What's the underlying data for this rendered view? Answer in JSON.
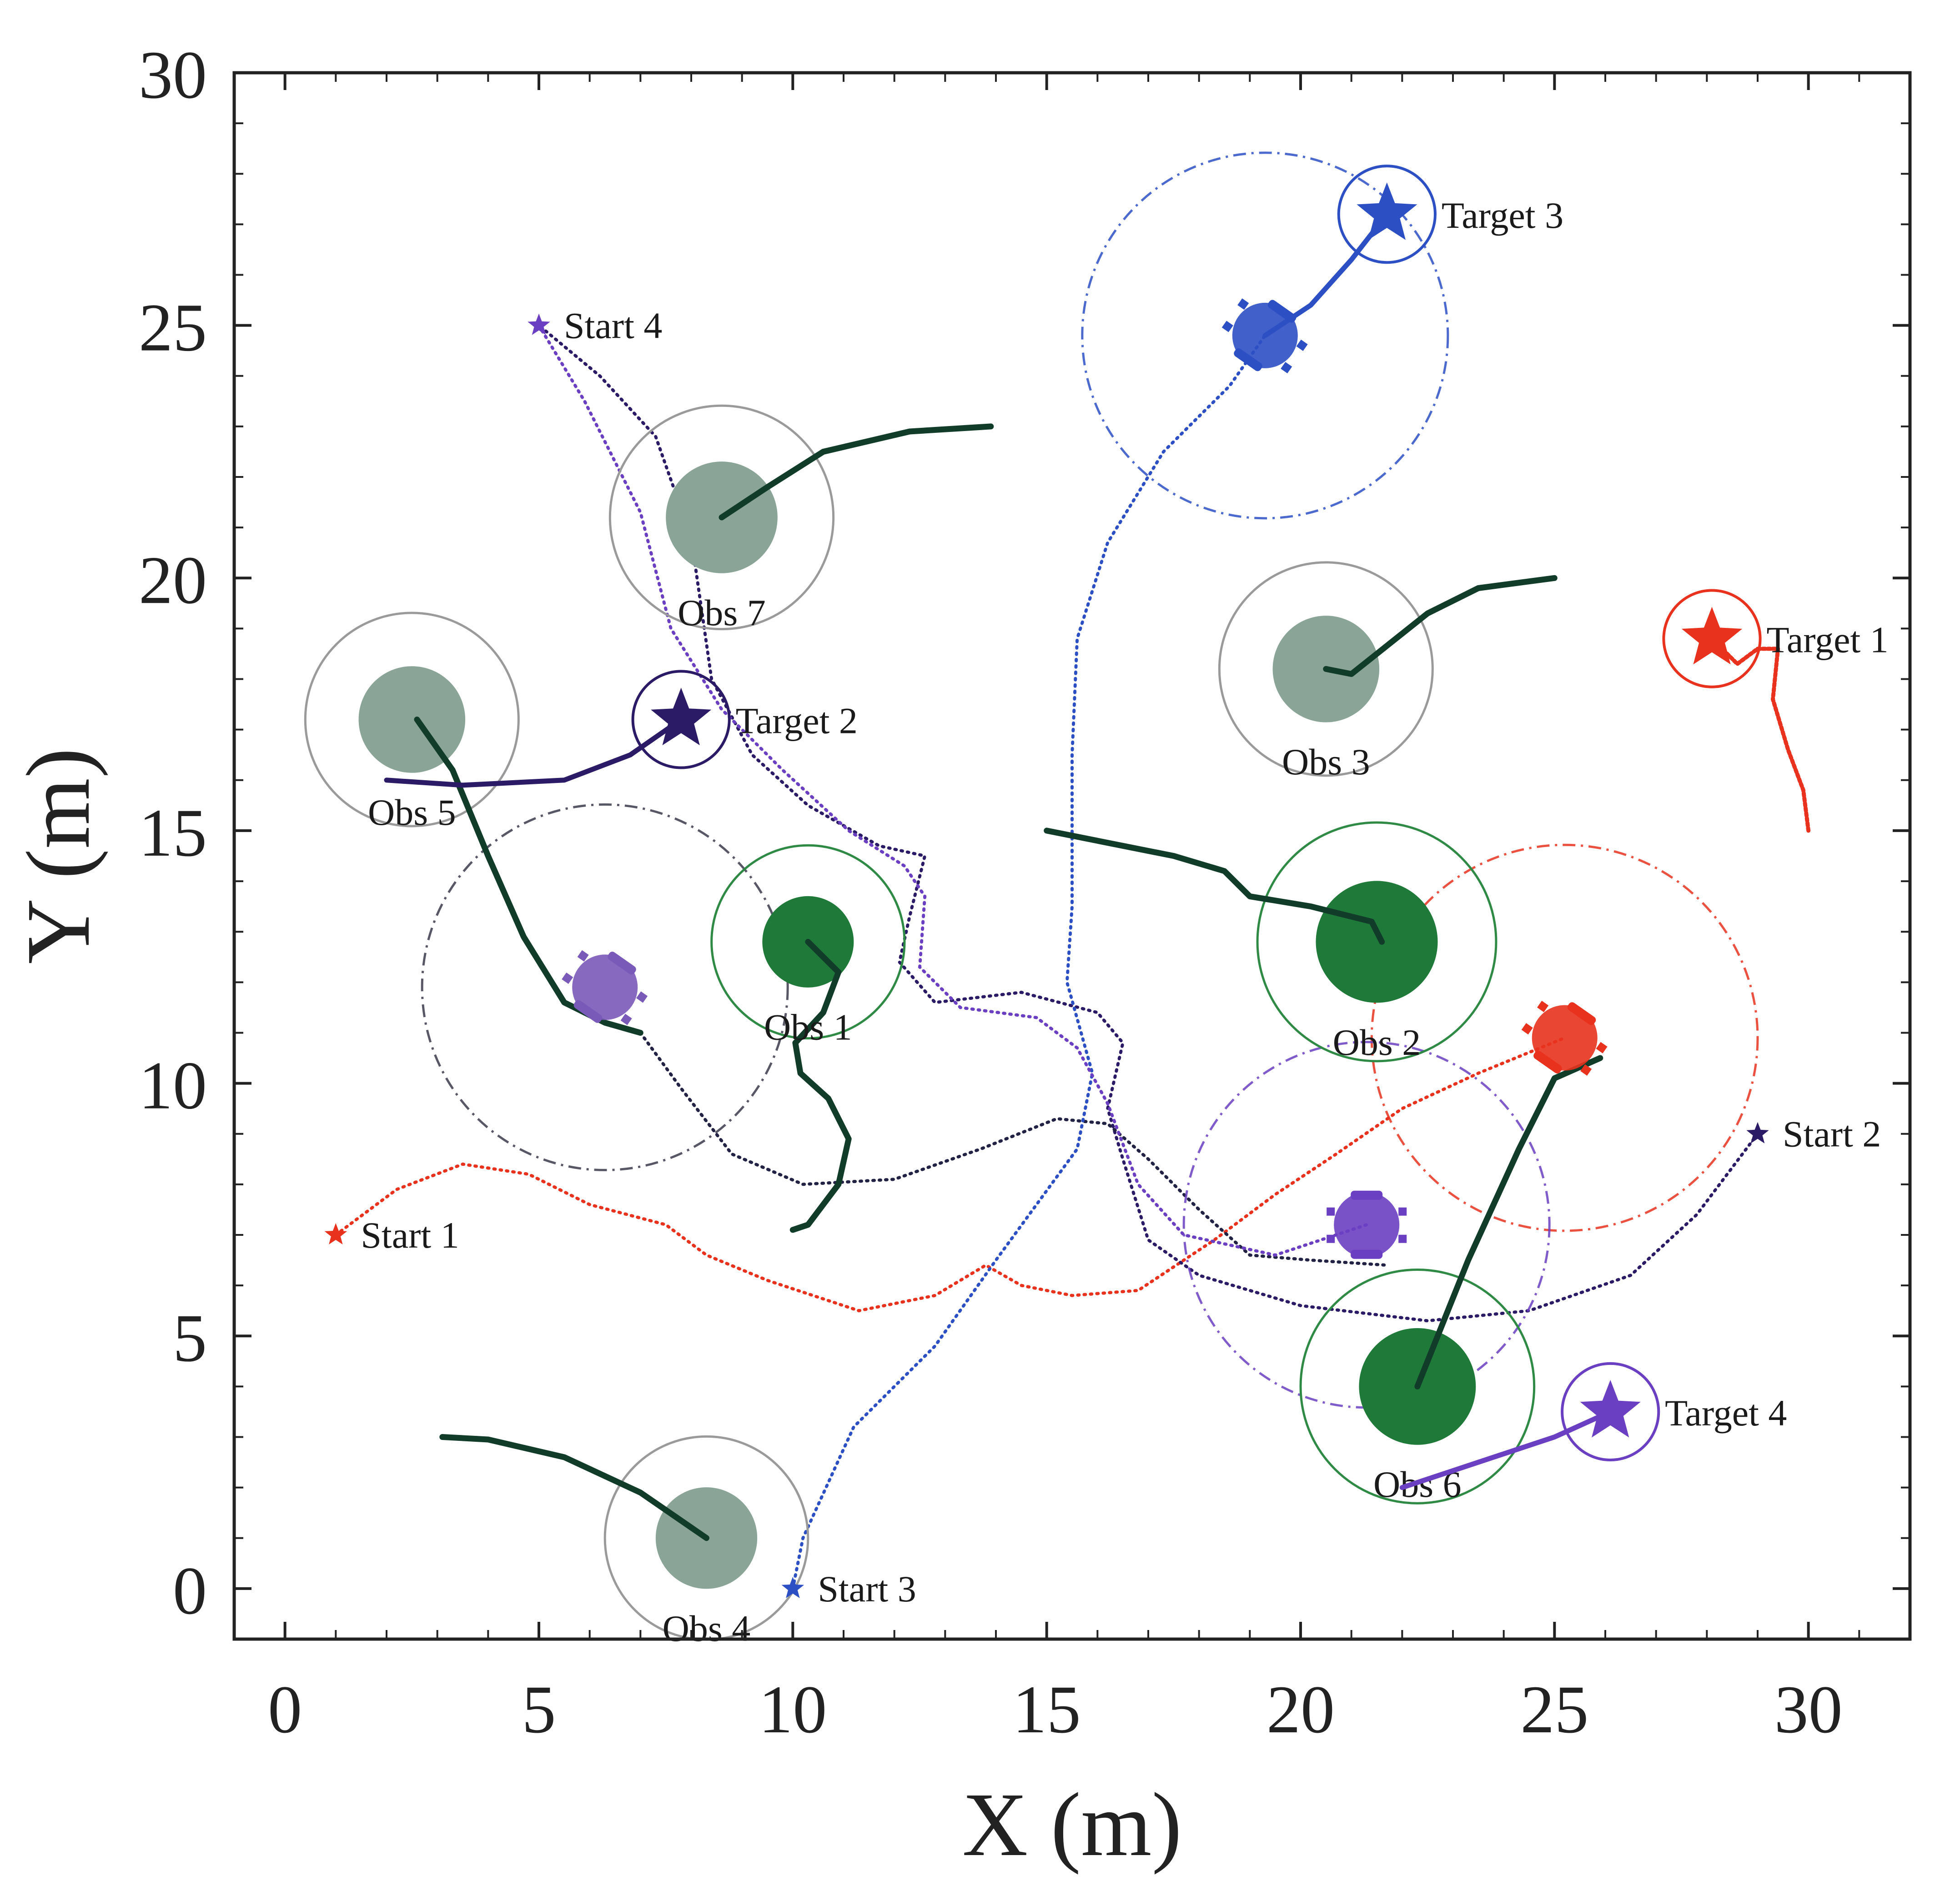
{
  "chart_data": {
    "type": "scatter",
    "title": "",
    "xlabel": "X (m)",
    "ylabel": "Y (m)",
    "xlim": [
      -1,
      32
    ],
    "ylim": [
      -1,
      30
    ],
    "xticks": [
      0,
      5,
      10,
      15,
      20,
      25,
      30
    ],
    "yticks": [
      0,
      5,
      10,
      15,
      20,
      25,
      30
    ],
    "grid": false,
    "legend": "none",
    "colors": {
      "obstacle_static": "#8aa597",
      "obstacle_dynamic": "#1f7a3a",
      "obstacle_ring_static": "#9a9a9a",
      "obstacle_ring_dynamic": "#2f8a45",
      "obstacle_path": "#123c2a",
      "robot1": "#e8321e",
      "robot2": "#2b1b66",
      "robot3": "#2d4fc4",
      "robot4": "#6a3fc2"
    },
    "obstacles": [
      {
        "label": "Obs 1",
        "x": 10.3,
        "y": 12.8,
        "r": 0.9,
        "ring": 1.9,
        "kind": "dynamic",
        "path": [
          [
            10.3,
            12.8
          ],
          [
            10.9,
            12.2
          ],
          [
            10.6,
            11.4
          ],
          [
            10.05,
            10.8
          ],
          [
            10.15,
            10.2
          ],
          [
            10.7,
            9.7
          ],
          [
            11.1,
            8.9
          ],
          [
            10.9,
            8.0
          ],
          [
            10.3,
            7.2
          ],
          [
            10.0,
            7.1
          ]
        ]
      },
      {
        "label": "Obs 2",
        "x": 21.5,
        "y": 12.8,
        "r": 1.2,
        "ring": 2.35,
        "kind": "dynamic",
        "path": [
          [
            21.6,
            12.8
          ],
          [
            21.4,
            13.2
          ],
          [
            20.2,
            13.5
          ],
          [
            19.0,
            13.7
          ],
          [
            18.5,
            14.2
          ],
          [
            17.5,
            14.5
          ],
          [
            15.0,
            15.0
          ]
        ]
      },
      {
        "label": "Obs 3",
        "x": 20.5,
        "y": 18.2,
        "r": 1.05,
        "ring": 2.1,
        "kind": "static",
        "path": [
          [
            20.5,
            18.2
          ],
          [
            21.0,
            18.1
          ],
          [
            22.5,
            19.3
          ],
          [
            23.5,
            19.8
          ],
          [
            25.0,
            20.0
          ]
        ]
      },
      {
        "label": "Obs 4",
        "x": 8.3,
        "y": 1.0,
        "r": 1.0,
        "ring": 2.0,
        "kind": "static",
        "path": [
          [
            8.3,
            1.0
          ],
          [
            7.0,
            1.9
          ],
          [
            5.5,
            2.6
          ],
          [
            4.0,
            2.95
          ],
          [
            3.1,
            3.0
          ]
        ]
      },
      {
        "label": "Obs 5",
        "x": 2.5,
        "y": 17.2,
        "r": 1.05,
        "ring": 2.1,
        "kind": "static",
        "path": [
          [
            2.6,
            17.2
          ],
          [
            3.3,
            16.2
          ],
          [
            4.0,
            14.5
          ],
          [
            4.7,
            12.9
          ],
          [
            5.5,
            11.6
          ],
          [
            6.3,
            11.2
          ],
          [
            7.0,
            11.0
          ]
        ]
      },
      {
        "label": "Obs 6",
        "x": 22.3,
        "y": 4.0,
        "r": 1.15,
        "ring": 2.3,
        "kind": "dynamic",
        "path": [
          [
            22.3,
            4.0
          ],
          [
            23.3,
            6.5
          ],
          [
            24.3,
            8.7
          ],
          [
            25.0,
            10.1
          ],
          [
            25.9,
            10.5
          ]
        ]
      },
      {
        "label": "Obs 7",
        "x": 8.6,
        "y": 21.2,
        "r": 1.1,
        "ring": 2.2,
        "kind": "static",
        "path": [
          [
            8.6,
            21.2
          ],
          [
            9.5,
            21.8
          ],
          [
            10.6,
            22.5
          ],
          [
            12.3,
            22.9
          ],
          [
            13.9,
            23.0
          ]
        ]
      }
    ],
    "robots": [
      {
        "start_label": "Start 1",
        "target_label": "Target 1",
        "color": "#e8321e",
        "start": [
          1.0,
          7.0
        ],
        "target": [
          28.1,
          18.8
        ],
        "current": [
          25.2,
          10.9
        ],
        "sense_r": 3.8,
        "path": [
          [
            1.0,
            7.0
          ],
          [
            2.2,
            7.9
          ],
          [
            3.5,
            8.4
          ],
          [
            4.8,
            8.2
          ],
          [
            6.0,
            7.6
          ],
          [
            7.5,
            7.2
          ],
          [
            8.3,
            6.6
          ],
          [
            9.5,
            6.1
          ],
          [
            11.3,
            5.5
          ],
          [
            12.8,
            5.8
          ],
          [
            13.8,
            6.4
          ],
          [
            14.5,
            6.0
          ],
          [
            15.5,
            5.8
          ],
          [
            16.8,
            5.9
          ],
          [
            18.3,
            6.9
          ],
          [
            19.5,
            7.8
          ],
          [
            20.7,
            8.6
          ],
          [
            22.0,
            9.5
          ],
          [
            23.5,
            10.2
          ],
          [
            25.2,
            10.9
          ]
        ],
        "aux_path": [
          [
            30.0,
            15.0
          ],
          [
            29.9,
            15.8
          ],
          [
            29.6,
            16.6
          ],
          [
            29.3,
            17.6
          ],
          [
            29.4,
            18.6
          ],
          [
            29.0,
            18.6
          ],
          [
            28.6,
            18.3
          ],
          [
            28.1,
            18.8
          ]
        ]
      },
      {
        "start_label": "Start 2",
        "target_label": "Target 2",
        "color": "#2b1b66",
        "start": [
          29.0,
          9.0
        ],
        "target": [
          7.8,
          17.2
        ],
        "current": [
          6.3,
          11.9
        ],
        "sense_r": 3.6,
        "path": [
          [
            29.0,
            9.0
          ],
          [
            27.8,
            7.4
          ],
          [
            26.5,
            6.2
          ],
          [
            24.5,
            5.5
          ],
          [
            22.5,
            5.3
          ],
          [
            20.0,
            5.6
          ],
          [
            18.0,
            6.2
          ],
          [
            17.0,
            6.9
          ],
          [
            16.5,
            8.5
          ],
          [
            16.2,
            9.5
          ],
          [
            16.5,
            10.8
          ],
          [
            16.0,
            11.4
          ],
          [
            14.5,
            11.8
          ],
          [
            12.8,
            11.6
          ],
          [
            12.1,
            12.4
          ],
          [
            12.3,
            13.3
          ],
          [
            12.6,
            14.5
          ],
          [
            11.7,
            14.7
          ],
          [
            10.3,
            15.5
          ],
          [
            9.2,
            16.5
          ],
          [
            8.4,
            18.0
          ],
          [
            8.0,
            20.8
          ],
          [
            7.3,
            22.8
          ],
          [
            6.2,
            24.0
          ],
          [
            5.0,
            25.0
          ]
        ],
        "aux_path": [
          [
            2.0,
            16.0
          ],
          [
            3.5,
            15.9
          ],
          [
            5.5,
            16.0
          ],
          [
            6.8,
            16.5
          ],
          [
            7.8,
            17.2
          ]
        ],
        "aux2_path": [
          [
            7.0,
            11.0
          ],
          [
            7.8,
            9.9
          ],
          [
            8.8,
            8.6
          ],
          [
            10.2,
            8.0
          ],
          [
            12.0,
            8.1
          ],
          [
            13.7,
            8.7
          ],
          [
            15.2,
            9.3
          ],
          [
            16.2,
            9.2
          ],
          [
            17.0,
            8.5
          ],
          [
            18.0,
            7.5
          ],
          [
            19.0,
            6.6
          ],
          [
            20.2,
            6.5
          ],
          [
            21.7,
            6.4
          ]
        ]
      },
      {
        "start_label": "Start 3",
        "target_label": "Target 3",
        "color": "#2d4fc4",
        "start": [
          10.0,
          0.0
        ],
        "target": [
          21.7,
          27.2
        ],
        "current": [
          19.3,
          24.8
        ],
        "sense_r": 3.6,
        "path": [
          [
            10.0,
            0.0
          ],
          [
            10.2,
            1.0
          ],
          [
            11.2,
            3.2
          ],
          [
            12.8,
            4.8
          ],
          [
            14.0,
            6.5
          ],
          [
            15.6,
            8.7
          ],
          [
            15.9,
            10.2
          ],
          [
            15.4,
            12.0
          ],
          [
            15.5,
            13.5
          ],
          [
            15.5,
            16.5
          ],
          [
            15.6,
            18.8
          ],
          [
            16.2,
            20.7
          ],
          [
            17.3,
            22.5
          ],
          [
            18.6,
            23.8
          ],
          [
            19.3,
            24.8
          ]
        ],
        "aux_path": [
          [
            19.3,
            24.8
          ],
          [
            20.2,
            25.4
          ],
          [
            21.0,
            26.3
          ],
          [
            21.7,
            27.2
          ]
        ]
      },
      {
        "start_label": "Start 4",
        "target_label": "Target 4",
        "color": "#6a3fc2",
        "start": [
          5.0,
          25.0
        ],
        "target": [
          26.1,
          3.5
        ],
        "current": [
          21.3,
          7.2
        ],
        "sense_r": 3.6,
        "path": [
          [
            5.0,
            25.0
          ],
          [
            5.9,
            23.5
          ],
          [
            7.0,
            21.3
          ],
          [
            7.6,
            19.0
          ],
          [
            8.6,
            17.4
          ],
          [
            9.8,
            16.2
          ],
          [
            11.1,
            15.0
          ],
          [
            12.2,
            14.3
          ],
          [
            12.6,
            13.7
          ],
          [
            12.5,
            12.3
          ],
          [
            13.3,
            11.5
          ],
          [
            14.8,
            11.3
          ],
          [
            15.6,
            10.7
          ],
          [
            16.2,
            9.6
          ],
          [
            16.8,
            8.0
          ],
          [
            17.7,
            7.0
          ],
          [
            19.5,
            6.6
          ],
          [
            21.3,
            7.2
          ]
        ],
        "aux_path": [
          [
            22.0,
            2.0
          ],
          [
            23.5,
            2.5
          ],
          [
            25.0,
            3.0
          ],
          [
            26.1,
            3.5
          ]
        ]
      }
    ]
  }
}
